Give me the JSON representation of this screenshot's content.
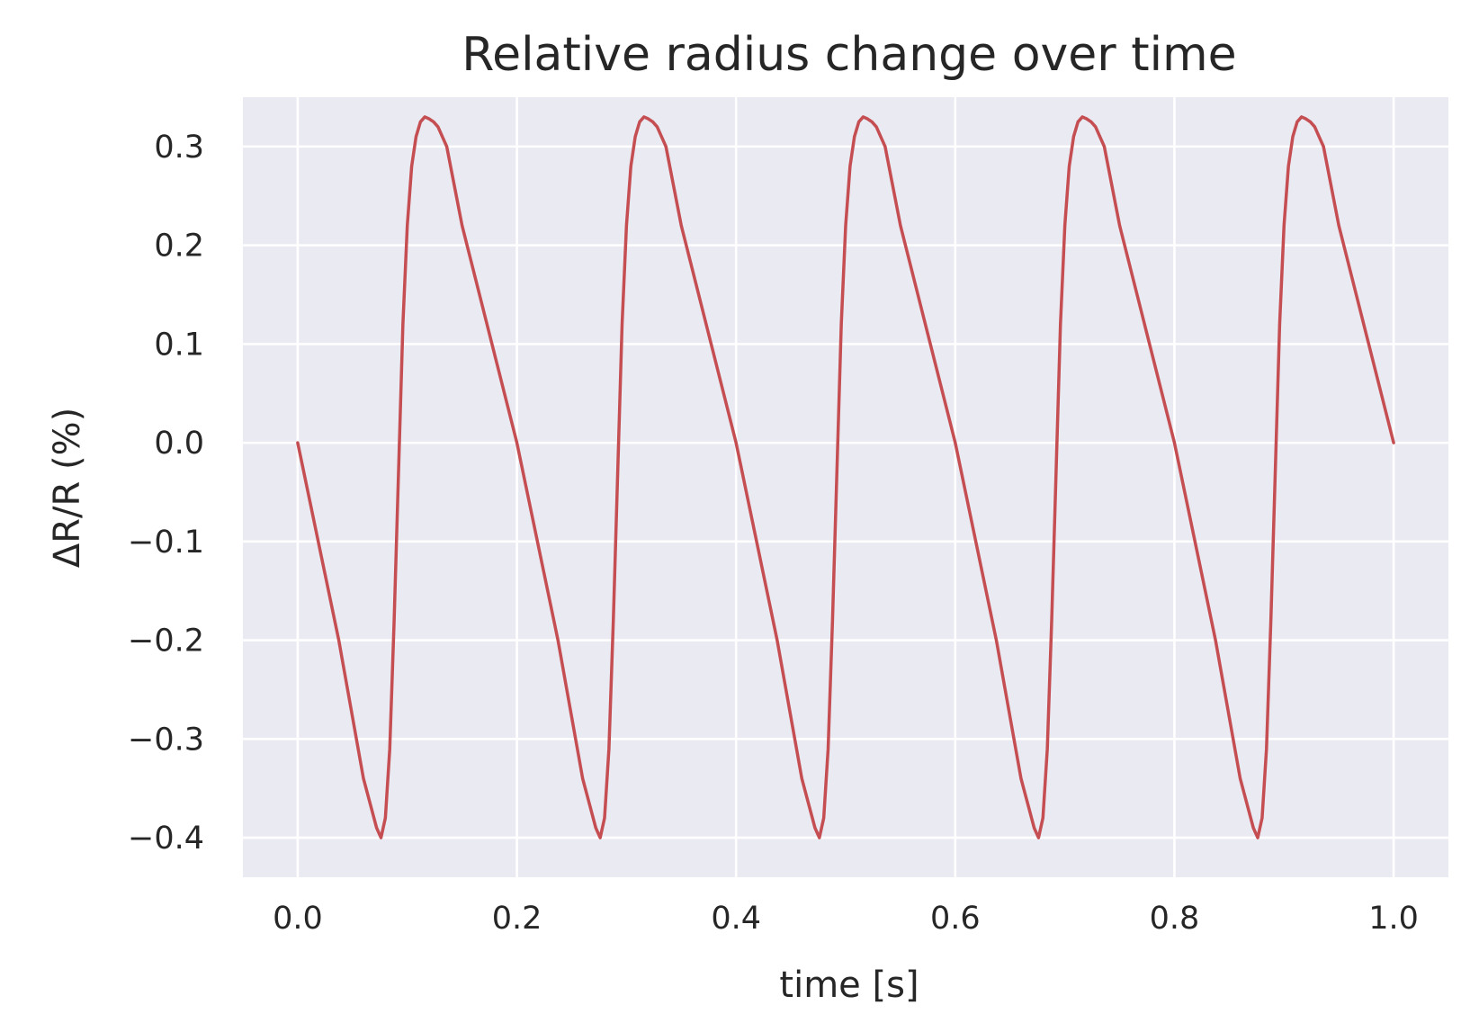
{
  "colors": {
    "plot_background": "#eaeaf2",
    "grid": "#ffffff",
    "line": "#c44e52",
    "text": "#262626"
  },
  "chart_data": {
    "type": "line",
    "title": "Relative radius change over time",
    "xlabel": "time [s]",
    "ylabel": "ΔR/R (%)",
    "xlim": [
      -0.05,
      1.05
    ],
    "ylim": [
      -0.44,
      0.35
    ],
    "grid": true,
    "xticks": [
      0.0,
      0.2,
      0.4,
      0.6,
      0.8,
      1.0
    ],
    "xtick_labels": [
      "0.0",
      "0.2",
      "0.4",
      "0.6",
      "0.8",
      "1.0"
    ],
    "yticks": [
      -0.4,
      -0.3,
      -0.2,
      -0.1,
      0.0,
      0.1,
      0.2,
      0.3
    ],
    "ytick_labels": [
      "−0.4",
      "−0.3",
      "−0.2",
      "−0.1",
      "0.0",
      "0.1",
      "0.2",
      "0.3"
    ],
    "series": [
      {
        "color": "#c44e52",
        "x": [
          0.0,
          0.0375,
          0.06,
          0.072,
          0.076,
          0.08,
          0.084,
          0.088,
          0.092,
          0.096,
          0.1,
          0.104,
          0.108,
          0.112,
          0.116,
          0.12,
          0.124,
          0.128,
          0.132,
          0.136,
          0.15,
          0.175,
          0.2,
          0.2375,
          0.26,
          0.272,
          0.276,
          0.28,
          0.284,
          0.288,
          0.292,
          0.296,
          0.3,
          0.304,
          0.308,
          0.312,
          0.316,
          0.32,
          0.324,
          0.328,
          0.332,
          0.336,
          0.35,
          0.375,
          0.4,
          0.4375,
          0.46,
          0.472,
          0.476,
          0.48,
          0.484,
          0.488,
          0.492,
          0.496,
          0.5,
          0.504,
          0.508,
          0.512,
          0.516,
          0.52,
          0.524,
          0.528,
          0.532,
          0.536,
          0.55,
          0.575,
          0.6,
          0.6375,
          0.66,
          0.672,
          0.676,
          0.68,
          0.684,
          0.688,
          0.692,
          0.696,
          0.7,
          0.704,
          0.708,
          0.712,
          0.716,
          0.72,
          0.724,
          0.728,
          0.732,
          0.736,
          0.75,
          0.775,
          0.8,
          0.8375,
          0.86,
          0.872,
          0.876,
          0.88,
          0.884,
          0.888,
          0.892,
          0.896,
          0.9,
          0.904,
          0.908,
          0.912,
          0.916,
          0.92,
          0.924,
          0.928,
          0.932,
          0.936,
          0.95,
          0.975,
          1.0
        ],
        "y": [
          0.0,
          -0.2,
          -0.34,
          -0.39,
          -0.4,
          -0.38,
          -0.31,
          -0.18,
          -0.03,
          0.12,
          0.22,
          0.28,
          0.31,
          0.325,
          0.33,
          0.328,
          0.325,
          0.32,
          0.31,
          0.3,
          0.22,
          0.11,
          0.0,
          -0.2,
          -0.34,
          -0.39,
          -0.4,
          -0.38,
          -0.31,
          -0.18,
          -0.03,
          0.12,
          0.22,
          0.28,
          0.31,
          0.325,
          0.33,
          0.328,
          0.325,
          0.32,
          0.31,
          0.3,
          0.22,
          0.11,
          0.0,
          -0.2,
          -0.34,
          -0.39,
          -0.4,
          -0.38,
          -0.31,
          -0.18,
          -0.03,
          0.12,
          0.22,
          0.28,
          0.31,
          0.325,
          0.33,
          0.328,
          0.325,
          0.32,
          0.31,
          0.3,
          0.22,
          0.11,
          0.0,
          -0.2,
          -0.34,
          -0.39,
          -0.4,
          -0.38,
          -0.31,
          -0.18,
          -0.03,
          0.12,
          0.22,
          0.28,
          0.31,
          0.325,
          0.33,
          0.328,
          0.325,
          0.32,
          0.31,
          0.3,
          0.22,
          0.11,
          0.0,
          -0.2,
          -0.34,
          -0.39,
          -0.4,
          -0.38,
          -0.31,
          -0.18,
          -0.03,
          0.12,
          0.22,
          0.28,
          0.31,
          0.325,
          0.33,
          0.328,
          0.325,
          0.32,
          0.31,
          0.3,
          0.22,
          0.11,
          0.0
        ]
      }
    ]
  }
}
